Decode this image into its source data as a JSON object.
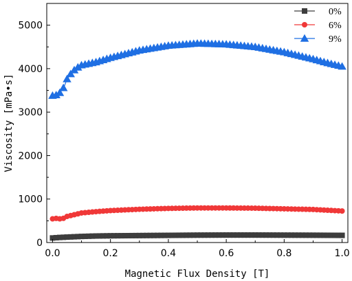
{
  "chart_data": {
    "type": "scatter",
    "xlabel": "Magnetic Flux Density [T]",
    "ylabel": "Viscosity [mPa•s]",
    "xlim": [
      -0.02,
      1.02
    ],
    "ylim": [
      0,
      5500
    ],
    "xticks": [
      "0.0",
      "0.2",
      "0.4",
      "0.6",
      "0.8",
      "1.0"
    ],
    "yticks": [
      "0",
      "1000",
      "2000",
      "3000",
      "4000",
      "5000"
    ],
    "grid": false,
    "legend_position": "top-right",
    "series": [
      {
        "name": "0%",
        "marker": "square",
        "color": "#3d3d3d",
        "x": [
          0.0,
          0.02,
          0.05,
          0.1,
          0.15,
          0.2,
          0.3,
          0.4,
          0.5,
          0.6,
          0.7,
          0.8,
          0.9,
          1.0
        ],
        "y": [
          105,
          115,
          125,
          140,
          150,
          155,
          160,
          165,
          170,
          172,
          172,
          170,
          168,
          165
        ]
      },
      {
        "name": "6%",
        "marker": "circle",
        "color": "#f03838",
        "x": [
          0.0,
          0.02,
          0.03,
          0.05,
          0.075,
          0.1,
          0.15,
          0.2,
          0.3,
          0.4,
          0.5,
          0.6,
          0.7,
          0.8,
          0.9,
          1.0
        ],
        "y": [
          545,
          560,
          530,
          600,
          640,
          680,
          710,
          735,
          765,
          785,
          795,
          795,
          790,
          775,
          760,
          725
        ]
      },
      {
        "name": "9%",
        "marker": "triangle",
        "color": "#1f6fe3",
        "x": [
          0.0,
          0.02,
          0.04,
          0.05,
          0.065,
          0.08,
          0.1,
          0.15,
          0.2,
          0.3,
          0.4,
          0.5,
          0.6,
          0.7,
          0.8,
          0.9,
          0.95,
          1.0
        ],
        "y": [
          3380,
          3400,
          3580,
          3760,
          3900,
          4000,
          4080,
          4150,
          4250,
          4420,
          4530,
          4580,
          4560,
          4500,
          4380,
          4220,
          4130,
          4050
        ]
      }
    ]
  }
}
